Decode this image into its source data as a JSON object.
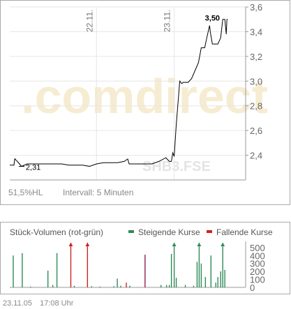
{
  "chart_data": [
    {
      "type": "line",
      "name": "price",
      "watermark": "comdirect",
      "instrument": "SHB3.FSE",
      "x_tick_labels": [
        "22.11.",
        "23.11."
      ],
      "y_ticks": [
        2.4,
        2.6,
        2.8,
        3.0,
        3.2,
        3.4,
        3.6
      ],
      "y_tick_labels": [
        "2,4",
        "2,6",
        "2,8",
        "3,0",
        "3,2",
        "3,4",
        "3,6"
      ],
      "ylim": [
        2.2,
        3.6
      ],
      "grid": true,
      "high_label": "3,50",
      "low_label": "2,31",
      "range_text": "51,5%HL",
      "interval_text": "Intervall: 5 Minuten",
      "series": [
        {
          "x": [
            0,
            6,
            7,
            8,
            9,
            11,
            17,
            25,
            35,
            45,
            55,
            65,
            75,
            85,
            95,
            105,
            115,
            125,
            135,
            145,
            155,
            165,
            170,
            172,
            175,
            185,
            195,
            205,
            215,
            225,
            230,
            233,
            235,
            237,
            240,
            245,
            248,
            250,
            255,
            257,
            262,
            272,
            276,
            280,
            281,
            284,
            288,
            289,
            292,
            300,
            304,
            307,
            310,
            312,
            313,
            314
          ],
          "y": [
            2.32,
            2.32,
            2.37,
            2.37,
            2.36,
            2.35,
            2.31,
            2.33,
            2.33,
            2.33,
            2.33,
            2.33,
            2.33,
            2.32,
            2.32,
            2.32,
            2.31,
            2.33,
            2.34,
            2.34,
            2.34,
            2.35,
            2.37,
            2.33,
            2.33,
            2.33,
            2.33,
            2.33,
            2.35,
            2.38,
            2.35,
            2.35,
            2.42,
            2.39,
            2.65,
            3.0,
            2.98,
            2.99,
            2.99,
            2.99,
            3.02,
            3.15,
            3.27,
            3.27,
            3.27,
            3.35,
            3.45,
            3.4,
            3.3,
            3.3,
            3.35,
            3.5,
            3.5,
            3.38,
            3.5,
            3.5
          ],
          "color": "#000000"
        }
      ]
    },
    {
      "type": "bar",
      "name": "volume",
      "title": "Stück-Volumen (rot-grün)",
      "legend": [
        {
          "label": "Steigende Kurse",
          "color": "#2e8b57"
        },
        {
          "label": "Fallende Kurse",
          "color": "#cc2222"
        }
      ],
      "y_ticks": [
        0,
        100,
        200,
        300,
        400,
        500
      ],
      "ylim": [
        0,
        560
      ],
      "bars": [
        {
          "x": 5,
          "value": 400,
          "color": "#2e8b57"
        },
        {
          "x": 18,
          "value": 430,
          "color": "#2e8b57"
        },
        {
          "x": 30,
          "value": 10,
          "color": "#2e8b57"
        },
        {
          "x": 55,
          "value": 210,
          "color": "#2e8b57"
        },
        {
          "x": 62,
          "value": 30,
          "color": "#2e8b57"
        },
        {
          "x": 68,
          "value": 430,
          "color": "#2e8b57"
        },
        {
          "x": 88,
          "value": 560,
          "color": "#cc2222"
        },
        {
          "x": 93,
          "value": 20,
          "color": "#2e8b57"
        },
        {
          "x": 112,
          "value": 560,
          "color": "#cc2222"
        },
        {
          "x": 118,
          "value": 15,
          "color": "#2e8b57"
        },
        {
          "x": 130,
          "value": 10,
          "color": "#2e8b57"
        },
        {
          "x": 150,
          "value": 15,
          "color": "#2e8b57"
        },
        {
          "x": 155,
          "value": 110,
          "color": "#2e8b57"
        },
        {
          "x": 160,
          "value": 20,
          "color": "#2e8b57"
        },
        {
          "x": 168,
          "value": 60,
          "color": "#cc2222"
        },
        {
          "x": 173,
          "value": 20,
          "color": "#2e8b57"
        },
        {
          "x": 195,
          "value": 410,
          "color": "#8b2252"
        },
        {
          "x": 218,
          "value": 30,
          "color": "#2e8b57"
        },
        {
          "x": 226,
          "value": 30,
          "color": "#2e8b57"
        },
        {
          "x": 230,
          "value": 30,
          "color": "#2e8b57"
        },
        {
          "x": 233,
          "value": 420,
          "color": "#2e8b57"
        },
        {
          "x": 237,
          "value": 560,
          "color": "#2e8b57"
        },
        {
          "x": 240,
          "value": 120,
          "color": "#2e8b57"
        },
        {
          "x": 253,
          "value": 30,
          "color": "#2e8b57"
        },
        {
          "x": 265,
          "value": 20,
          "color": "#2e8b57"
        },
        {
          "x": 270,
          "value": 320,
          "color": "#2e8b57"
        },
        {
          "x": 273,
          "value": 560,
          "color": "#2e8b57"
        },
        {
          "x": 276,
          "value": 300,
          "color": "#2e8b57"
        },
        {
          "x": 282,
          "value": 130,
          "color": "#2e8b57"
        },
        {
          "x": 290,
          "value": 400,
          "color": "#2e8b57"
        },
        {
          "x": 297,
          "value": 60,
          "color": "#2e8b57"
        },
        {
          "x": 300,
          "value": 130,
          "color": "#2e8b57"
        },
        {
          "x": 304,
          "value": 200,
          "color": "#2e8b57"
        },
        {
          "x": 307,
          "value": 560,
          "color": "#2e8b57"
        },
        {
          "x": 310,
          "value": 220,
          "color": "#2e8b57"
        }
      ]
    }
  ],
  "footer": {
    "date": "23.11.05",
    "time": "17:08 Uhr"
  }
}
